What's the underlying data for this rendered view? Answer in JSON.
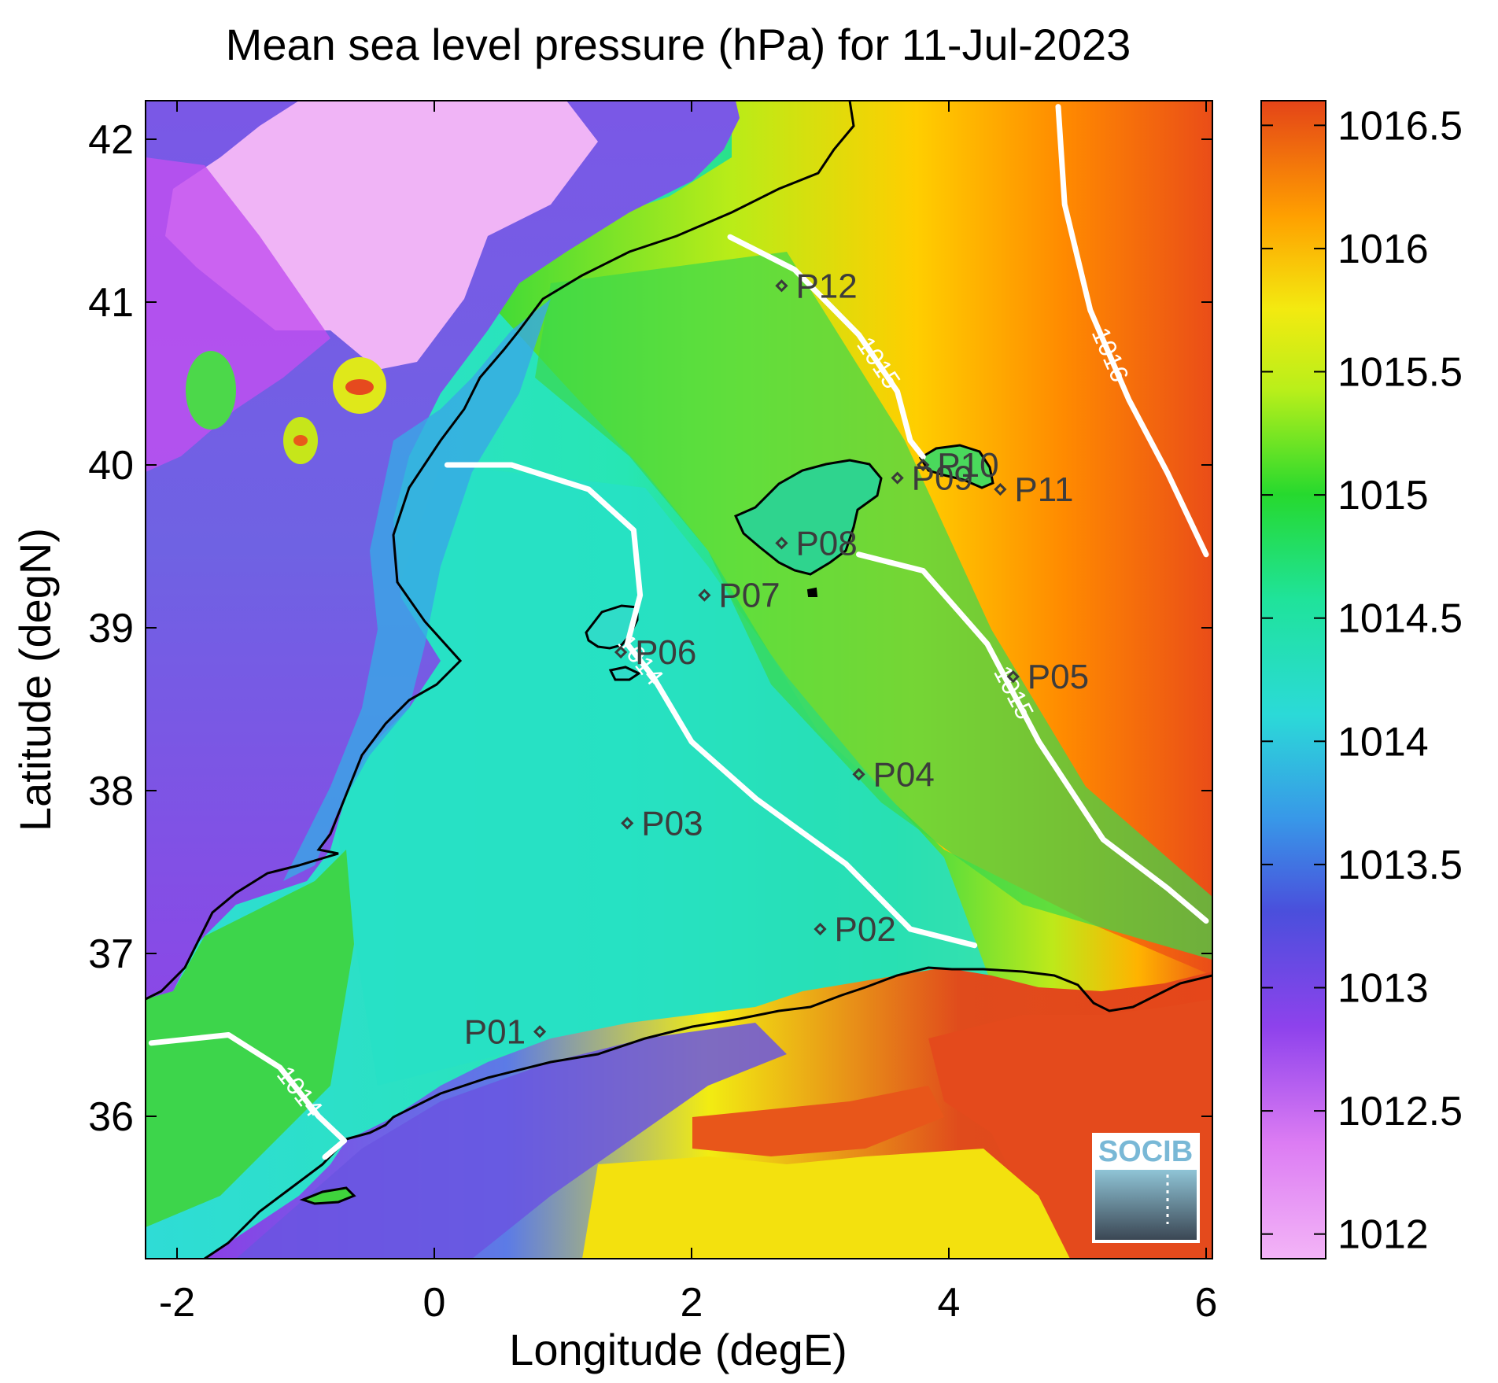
{
  "title": "Mean sea level pressure (hPa) for 11-Jul-2023",
  "xlabel": "Longitude (degE)",
  "ylabel": "Latitude (degN)",
  "chart_data": {
    "type": "heatmap",
    "title": "Mean sea level pressure (hPa) for 11-Jul-2023",
    "xlabel": "Longitude (degE)",
    "ylabel": "Latitude (degN)",
    "xlim": [
      -2.2,
      6.0
    ],
    "ylim": [
      35.2,
      42.2
    ],
    "x_ticks": [
      "-2",
      "0",
      "2",
      "4",
      "6"
    ],
    "y_ticks": [
      "36",
      "37",
      "38",
      "39",
      "40",
      "41",
      "42"
    ],
    "colorbar": {
      "range": [
        1011.9,
        1016.6
      ],
      "ticks": [
        "1012",
        "1012.5",
        "1013",
        "1013.5",
        "1014",
        "1014.5",
        "1015",
        "1015.5",
        "1016",
        "1016.5"
      ],
      "colors": [
        "#f3b4f7",
        "#c84af0",
        "#7a3fe6",
        "#3f6ae0",
        "#2bd6e0",
        "#22e6a0",
        "#2ed62e",
        "#eaf20a",
        "#ffa500",
        "#e84a1e"
      ]
    },
    "isobars": [
      {
        "label": "1014",
        "level": 1014,
        "points": [
          [
            0.1,
            40.0
          ],
          [
            0.6,
            40.0
          ],
          [
            1.2,
            39.85
          ],
          [
            1.55,
            39.6
          ],
          [
            1.6,
            39.2
          ],
          [
            1.5,
            38.9
          ],
          [
            1.7,
            38.7
          ],
          [
            2.0,
            38.3
          ],
          [
            2.5,
            37.95
          ],
          [
            3.2,
            37.55
          ],
          [
            3.7,
            37.15
          ],
          [
            4.2,
            37.05
          ]
        ]
      },
      {
        "label": "1014",
        "level": 1014,
        "points": [
          [
            -2.2,
            36.45
          ],
          [
            -1.6,
            36.5
          ],
          [
            -1.2,
            36.3
          ],
          [
            -0.9,
            36.0
          ],
          [
            -0.7,
            35.85
          ],
          [
            -0.85,
            35.75
          ]
        ]
      },
      {
        "label": "1015",
        "level": 1015,
        "points": [
          [
            3.3,
            39.45
          ],
          [
            3.8,
            39.35
          ],
          [
            4.3,
            38.9
          ],
          [
            4.7,
            38.3
          ],
          [
            5.2,
            37.7
          ],
          [
            5.7,
            37.4
          ],
          [
            6.0,
            37.2
          ]
        ]
      },
      {
        "label": "1015",
        "level": 1015,
        "points": [
          [
            2.3,
            41.4
          ],
          [
            2.8,
            41.2
          ],
          [
            3.3,
            40.8
          ],
          [
            3.6,
            40.45
          ],
          [
            3.7,
            40.15
          ],
          [
            3.8,
            40.05
          ]
        ]
      },
      {
        "label": "1016",
        "level": 1016,
        "points": [
          [
            4.85,
            42.2
          ],
          [
            4.9,
            41.6
          ],
          [
            5.1,
            40.95
          ],
          [
            5.4,
            40.4
          ],
          [
            5.7,
            39.95
          ],
          [
            6.0,
            39.45
          ]
        ]
      }
    ],
    "stations": [
      {
        "name": "P01",
        "lon": 0.82,
        "lat": 36.52
      },
      {
        "name": "P02",
        "lon": 3.0,
        "lat": 37.15
      },
      {
        "name": "P03",
        "lon": 1.5,
        "lat": 37.8
      },
      {
        "name": "P04",
        "lon": 3.3,
        "lat": 38.1
      },
      {
        "name": "P05",
        "lon": 4.5,
        "lat": 38.7
      },
      {
        "name": "P06",
        "lon": 1.45,
        "lat": 38.85
      },
      {
        "name": "P07",
        "lon": 2.1,
        "lat": 39.2
      },
      {
        "name": "P08",
        "lon": 2.7,
        "lat": 39.52
      },
      {
        "name": "P09",
        "lon": 3.6,
        "lat": 39.92
      },
      {
        "name": "P10",
        "lon": 3.8,
        "lat": 40.0
      },
      {
        "name": "P11",
        "lon": 4.4,
        "lat": 39.85
      },
      {
        "name": "P12",
        "lon": 2.7,
        "lat": 41.1
      }
    ]
  },
  "logo": {
    "text": "SOCIB"
  }
}
